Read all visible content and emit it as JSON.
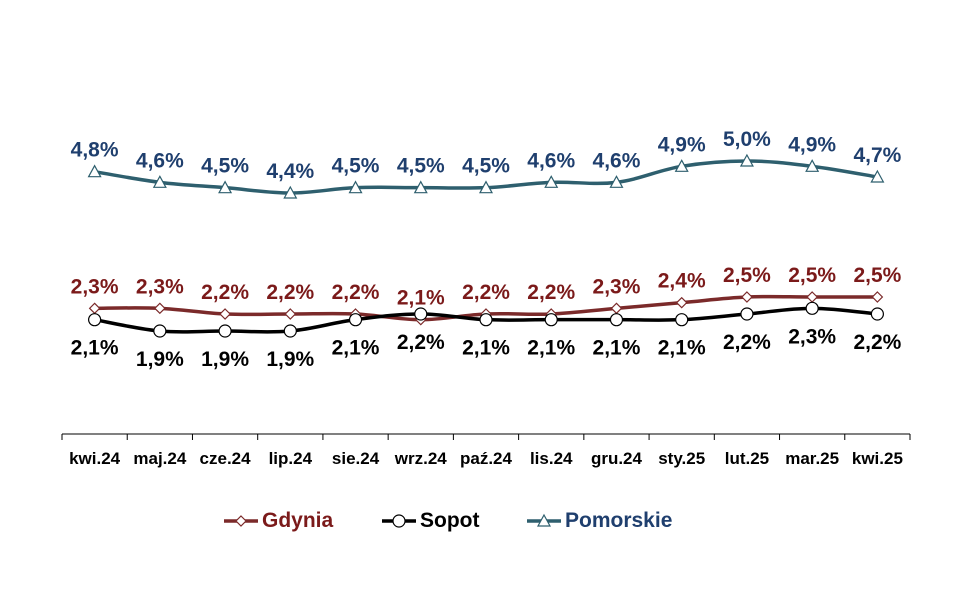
{
  "chart_data": {
    "type": "line",
    "title": "",
    "xlabel": "",
    "ylabel": "",
    "categories": [
      "kwi.24",
      "maj.24",
      "cze.24",
      "lip.24",
      "sie.24",
      "wrz.24",
      "paź.24",
      "lis.24",
      "gru.24",
      "sty.25",
      "lut.25",
      "mar.25",
      "kwi.25"
    ],
    "series": [
      {
        "name": "Gdynia",
        "color": "#7b2a2a",
        "label_color": "#7b1a1a",
        "marker": "diamond",
        "label_position": "above",
        "values": [
          2.3,
          2.3,
          2.2,
          2.2,
          2.2,
          2.1,
          2.2,
          2.2,
          2.3,
          2.4,
          2.5,
          2.5,
          2.5
        ],
        "labels": [
          "2,3%",
          "2,3%",
          "2,2%",
          "2,2%",
          "2,2%",
          "2,1%",
          "2,2%",
          "2,2%",
          "2,3%",
          "2,4%",
          "2,5%",
          "2,5%",
          "2,5%"
        ]
      },
      {
        "name": "Sopot",
        "color": "#000000",
        "label_color": "#000000",
        "marker": "circle",
        "label_position": "below",
        "values": [
          2.1,
          1.9,
          1.9,
          1.9,
          2.1,
          2.2,
          2.1,
          2.1,
          2.1,
          2.1,
          2.2,
          2.3,
          2.2
        ],
        "labels": [
          "2,1%",
          "1,9%",
          "1,9%",
          "1,9%",
          "2,1%",
          "2,2%",
          "2,1%",
          "2,1%",
          "2,1%",
          "2,1%",
          "2,2%",
          "2,3%",
          "2,2%"
        ]
      },
      {
        "name": "Pomorskie",
        "color": "#2e5f6e",
        "label_color": "#1f3f6e",
        "marker": "triangle",
        "label_position": "above",
        "values": [
          4.8,
          4.6,
          4.5,
          4.4,
          4.5,
          4.5,
          4.5,
          4.6,
          4.6,
          4.9,
          5.0,
          4.9,
          4.7
        ],
        "labels": [
          "4,8%",
          "4,6%",
          "4,5%",
          "4,4%",
          "4,5%",
          "4,5%",
          "4,5%",
          "4,6%",
          "4,6%",
          "4,9%",
          "5,0%",
          "4,9%",
          "4,7%"
        ]
      }
    ],
    "legend_position": "bottom",
    "grid": false,
    "y_axis_visible": false
  }
}
